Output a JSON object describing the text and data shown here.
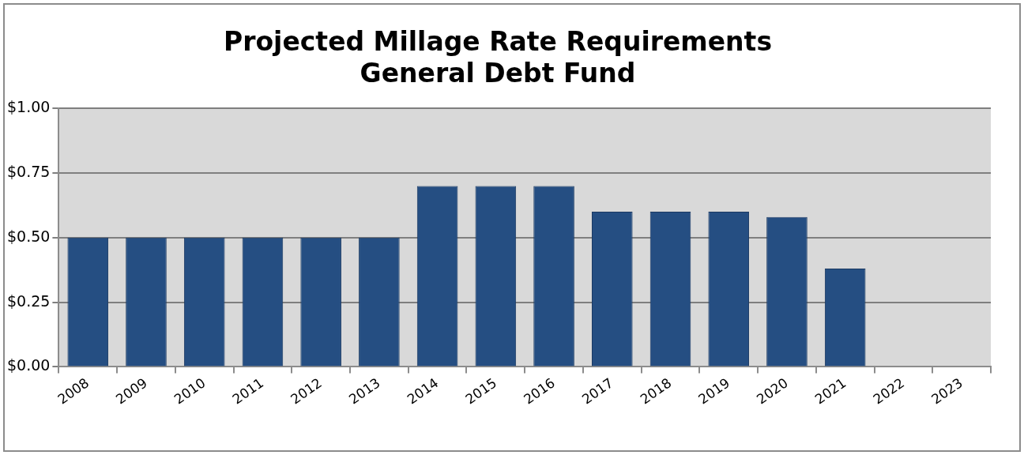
{
  "chart_data": {
    "type": "bar",
    "title": [
      "Projected Millage Rate Requirements",
      "General Debt Fund"
    ],
    "categories": [
      "2008",
      "2009",
      "2010",
      "2011",
      "2012",
      "2013",
      "2014",
      "2015",
      "2016",
      "2017",
      "2018",
      "2019",
      "2020",
      "2021",
      "2022",
      "2023"
    ],
    "values": [
      0.5,
      0.5,
      0.5,
      0.5,
      0.5,
      0.5,
      0.7,
      0.7,
      0.7,
      0.6,
      0.6,
      0.6,
      0.58,
      0.38,
      null,
      null
    ],
    "color": "#254e82",
    "ylim": [
      0,
      1
    ],
    "yticks": [
      {
        "value": 0,
        "label": "$0.00"
      },
      {
        "value": 0.25,
        "label": "$0.25"
      },
      {
        "value": 0.5,
        "label": "$0.50"
      },
      {
        "value": 0.75,
        "label": "$0.75"
      },
      {
        "value": 1,
        "label": "$1.00"
      }
    ],
    "grid": "y",
    "legend": false
  }
}
